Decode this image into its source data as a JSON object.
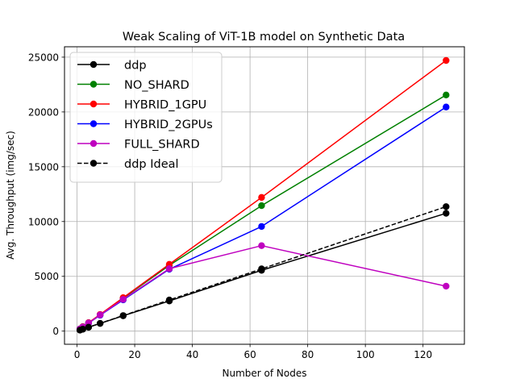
{
  "chart_data": {
    "type": "line",
    "title": "Weak Scaling of ViT-1B model on Synthetic Data",
    "xlabel": "Number of Nodes",
    "ylabel": "Avg. Throughput (img/sec)",
    "xlim": [
      -4.35,
      134.35
    ],
    "ylim": [
      -1200,
      25950
    ],
    "xticks": [
      0,
      20,
      40,
      60,
      80,
      100,
      120
    ],
    "yticks": [
      0,
      5000,
      10000,
      15000,
      20000,
      25000
    ],
    "grid": true,
    "legend_position": "top-left",
    "x": [
      1,
      2,
      4,
      8,
      16,
      32,
      64,
      128
    ],
    "series": [
      {
        "name": "ddp",
        "color": "#000000",
        "dashed": false,
        "values": [
          90,
          180,
          350,
          700,
          1400,
          2750,
          5550,
          10750
        ]
      },
      {
        "name": "NO_SHARD",
        "color": "#008000",
        "dashed": false,
        "values": [
          200,
          400,
          760,
          1500,
          3000,
          6000,
          11450,
          21550
        ]
      },
      {
        "name": "HYBRID_1GPU",
        "color": "#ff0000",
        "dashed": false,
        "values": [
          200,
          400,
          770,
          1520,
          3050,
          6100,
          12200,
          24700
        ]
      },
      {
        "name": "HYBRID_2GPUs",
        "color": "#0000ff",
        "dashed": false,
        "values": [
          190,
          380,
          730,
          1450,
          2850,
          5650,
          9550,
          20450
        ]
      },
      {
        "name": "FULL_SHARD",
        "color": "#bf00bf",
        "dashed": false,
        "values": [
          190,
          380,
          740,
          1480,
          2900,
          5700,
          7800,
          4100
        ]
      },
      {
        "name": "ddp Ideal",
        "color": "#000000",
        "dashed": true,
        "values": [
          90,
          180,
          360,
          710,
          1420,
          2840,
          5680,
          11360
        ]
      }
    ]
  }
}
